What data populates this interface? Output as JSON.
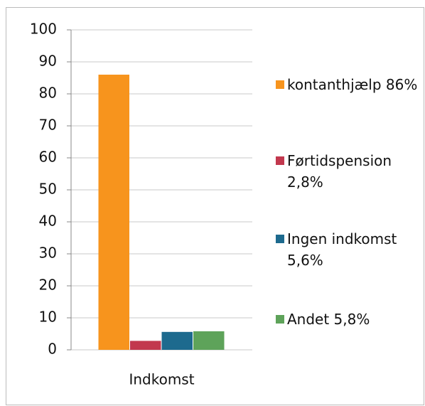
{
  "chart_data": {
    "type": "bar",
    "categories": [
      "Indkomst"
    ],
    "series": [
      {
        "name": "kontanthjælp 86%",
        "color": "#f7941d",
        "values": [
          86
        ]
      },
      {
        "name": "Førtidspension 2,8%",
        "color": "#c2384e",
        "values": [
          2.8
        ]
      },
      {
        "name": "Ingen indkomst 5,6%",
        "color": "#1d6a8e",
        "values": [
          5.6
        ]
      },
      {
        "name": "Andet 5,8%",
        "color": "#5ea35a",
        "values": [
          5.8
        ]
      }
    ],
    "ylim": [
      0,
      100
    ],
    "yticks": [
      0,
      10,
      20,
      30,
      40,
      50,
      60,
      70,
      80,
      90,
      100
    ],
    "grid": true,
    "legend": "right"
  }
}
